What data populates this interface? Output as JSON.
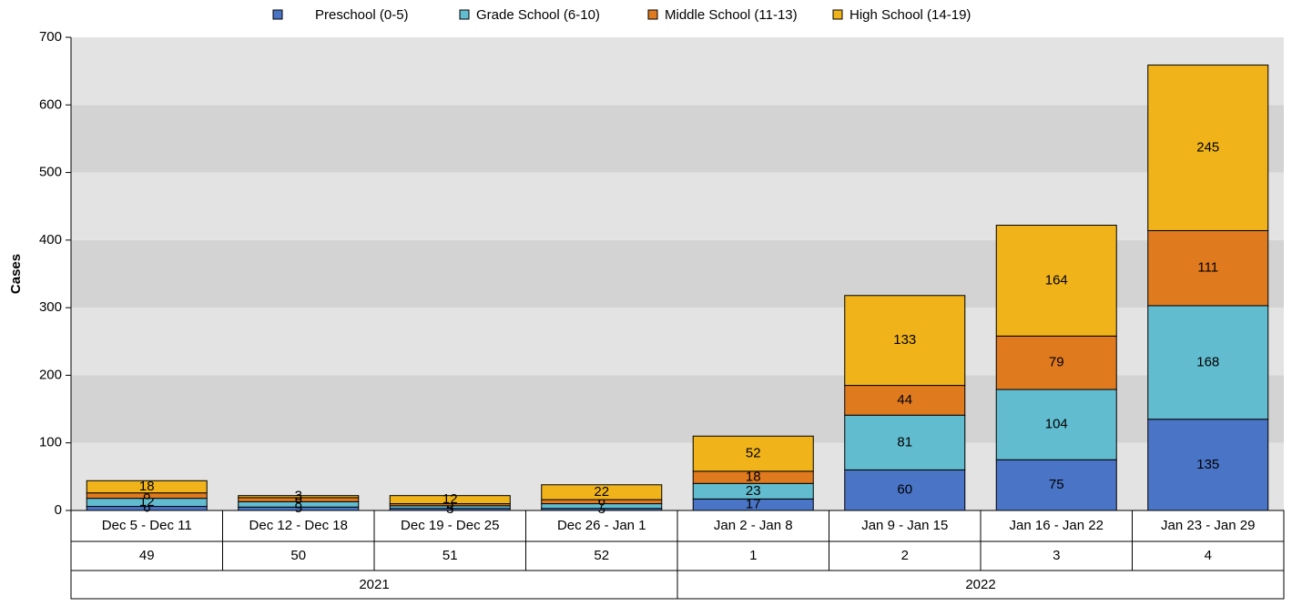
{
  "chart_data": {
    "type": "stacked_bar",
    "y_axis_label": "Cases",
    "categories": [
      "Dec 5 - Dec 11",
      "Dec 12 - Dec 18",
      "Dec 19 - Dec 25",
      "Dec 26 - Jan 1",
      "Jan 2 - Jan 8",
      "Jan 9 - Jan 15",
      "Jan 16 - Jan 22",
      "Jan 23 - Jan 29"
    ],
    "weeks": [
      "49",
      "50",
      "51",
      "52",
      "1",
      "2",
      "3",
      "4"
    ],
    "years": [
      "2021",
      "2021",
      "2021",
      "2021",
      "2022",
      "2022",
      "2022",
      "2022"
    ],
    "series": [
      {
        "name": "Preschool (0-5)",
        "color": "#4a74c6",
        "values": [
          6,
          5,
          3,
          3,
          17,
          60,
          75,
          135
        ]
      },
      {
        "name": "Grade School (6-10)",
        "color": "#62bccf",
        "values": [
          12,
          8,
          4,
          7,
          23,
          81,
          104,
          168
        ]
      },
      {
        "name": "Middle School (11-13)",
        "color": "#e07a1f",
        "values": [
          8,
          6,
          3,
          6,
          18,
          44,
          79,
          111
        ]
      },
      {
        "name": "High School (14-19)",
        "color": "#f0b41a",
        "values": [
          18,
          3,
          12,
          22,
          52,
          133,
          164,
          245
        ]
      }
    ],
    "ylim": [
      0,
      700
    ],
    "yticks": [
      0,
      100,
      200,
      300,
      400,
      500,
      600,
      700
    ],
    "band_colors": [
      "#e3e3e3",
      "#d3d3d3"
    ],
    "legend": "top"
  }
}
